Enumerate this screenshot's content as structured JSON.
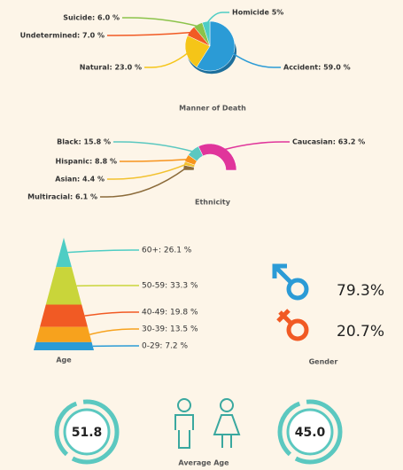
{
  "chart_data": [
    {
      "type": "pie",
      "title": "Manner of Death",
      "values": [
        59.0,
        23.0,
        7.0,
        6.0,
        5
      ],
      "value_labels": [
        "Accident: 59.0 %",
        "Natural: 23.0 %",
        "Undetermined: 7.0 %",
        "Suicide: 6.0 %",
        "Homicide 5%"
      ],
      "colors": [
        "#2b9bd6",
        "#f5c518",
        "#f15a24",
        "#8bc34a",
        "#4ecdc4"
      ]
    },
    {
      "type": "half-donut",
      "title": "Ethnicity",
      "values": [
        6.1,
        4.4,
        8.8,
        15.8,
        63.2
      ],
      "value_labels": [
        "Multiracial: 6.1 %",
        "Asian: 4.4 %",
        "Hispanic: 8.8 %",
        "Black: 15.8 %",
        "Caucasian: 63.2 %"
      ],
      "colors": [
        "#8b6b3a",
        "#f2c12e",
        "#f7941d",
        "#5bc8c0",
        "#e0359b"
      ]
    },
    {
      "type": "pyramid",
      "title": "Age",
      "values": [
        26.1,
        33.3,
        19.8,
        13.5,
        7.2
      ],
      "value_labels": [
        "60+: 26.1 %",
        "50-59: 33.3 %",
        "40-49: 19.8 %",
        "30-39: 13.5 %",
        "0-29: 7.2 %"
      ],
      "colors": [
        "#4ecdc4",
        "#c9d53a",
        "#f15a24",
        "#f7a21d",
        "#2b9bd6"
      ]
    },
    {
      "type": "gender",
      "title": "Gender",
      "values": [
        79.3,
        20.7
      ],
      "value_labels": [
        "79.3%",
        "20.7%"
      ],
      "colors": [
        "#2b9bd6",
        "#f15a24"
      ]
    },
    {
      "type": "rings",
      "title": "Average Age",
      "values": [
        51.8,
        45.0
      ],
      "value_labels": [
        "51.8",
        "45.0"
      ],
      "colors": [
        "#5bc8c0",
        "#5bc8c0"
      ]
    }
  ]
}
